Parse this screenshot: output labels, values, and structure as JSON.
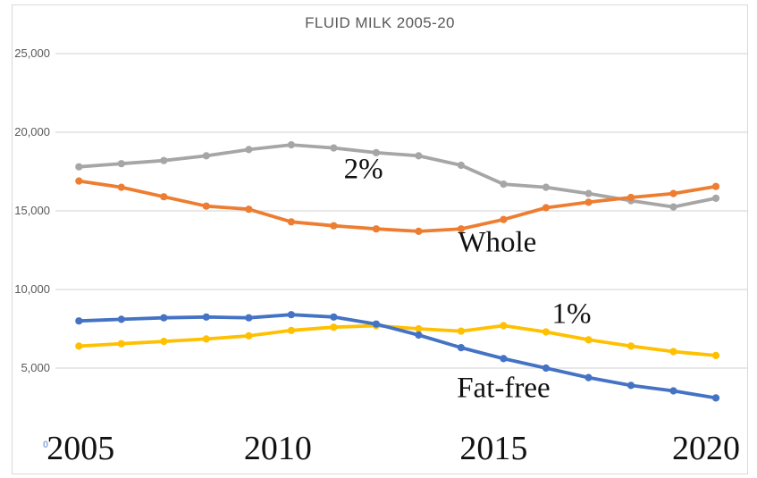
{
  "colors": {
    "grid": "#d9d9d9",
    "frame_border": "#d9d9d9",
    "title_text": "#595959",
    "y_tick_text": "#595959",
    "x_tick_text": "#111111",
    "zero_label_text": "#8faadc",
    "background": "#ffffff"
  },
  "chart_data": {
    "type": "line",
    "title": "FLUID MILK 2005-20",
    "xlabel": "",
    "ylabel": "",
    "x": [
      2005,
      2006,
      2007,
      2008,
      2009,
      2010,
      2011,
      2012,
      2013,
      2014,
      2015,
      2016,
      2017,
      2018,
      2019,
      2020
    ],
    "x_ticks": [
      {
        "year": 2005,
        "label": "2005"
      },
      {
        "year": 2010,
        "label": "2010"
      },
      {
        "year": 2015,
        "label": "2015"
      },
      {
        "year": 2020,
        "label": "2020"
      }
    ],
    "y_ticks": [
      {
        "value": 25000,
        "label": "25,000"
      },
      {
        "value": 20000,
        "label": "20,000"
      },
      {
        "value": 15000,
        "label": "15,000"
      },
      {
        "value": 10000,
        "label": "10,000"
      },
      {
        "value": 5000,
        "label": "5,000"
      }
    ],
    "y_zero_label": "0",
    "ylim": [
      0,
      25000
    ],
    "grid": "horizontal-only",
    "legend_position": "inline-labels",
    "marker": "circle",
    "series": [
      {
        "name": "2%",
        "color": "#a6a6a6",
        "values": [
          17800,
          18000,
          18200,
          18500,
          18900,
          19200,
          19000,
          18700,
          18500,
          17900,
          16700,
          16500,
          16100,
          15650,
          15250,
          15800
        ]
      },
      {
        "name": "Whole",
        "color": "#ed7d31",
        "values": [
          16900,
          16500,
          15900,
          15300,
          15100,
          14300,
          14050,
          13850,
          13700,
          13850,
          14450,
          15200,
          15550,
          15850,
          16100,
          16550
        ]
      },
      {
        "name": "1%",
        "color": "#ffc000",
        "values": [
          6400,
          6550,
          6700,
          6850,
          7050,
          7400,
          7600,
          7700,
          7500,
          7350,
          7700,
          7300,
          6800,
          6400,
          6050,
          5800
        ]
      },
      {
        "name": "Fat-free",
        "color": "#4472c4",
        "values": [
          8000,
          8100,
          8200,
          8250,
          8200,
          8400,
          8250,
          7800,
          7100,
          6300,
          5600,
          5000,
          4400,
          3900,
          3550,
          3100
        ]
      }
    ],
    "annotations": [
      {
        "text": "2%",
        "year": 2011.7,
        "value": 17600
      },
      {
        "text": "Whole",
        "year": 2014.85,
        "value": 12950
      },
      {
        "text": "1%",
        "year": 2016.6,
        "value": 8400
      },
      {
        "text": "Fat-free",
        "year": 2015.0,
        "value": 3700
      }
    ]
  }
}
